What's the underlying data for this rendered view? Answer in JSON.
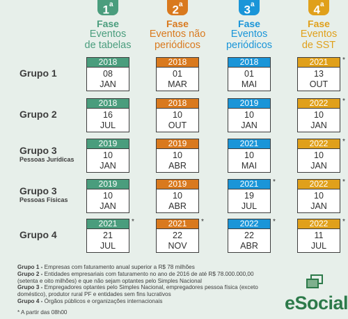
{
  "colors": {
    "phase1": "#4a9d7d",
    "phase2": "#d9791e",
    "phase3": "#1a95d8",
    "phase4": "#e0a01b"
  },
  "phases": [
    {
      "number": "1",
      "suffix": "a",
      "name": "Fase",
      "desc1": "Eventos",
      "desc2": "de tabelas"
    },
    {
      "number": "2",
      "suffix": "a",
      "name": "Fase",
      "desc1": "Eventos não",
      "desc2": "periódicos"
    },
    {
      "number": "3",
      "suffix": "a",
      "name": "Fase",
      "desc1": "Eventos",
      "desc2": "periódicos"
    },
    {
      "number": "4",
      "suffix": "a",
      "name": "Fase",
      "desc1": "Eventos",
      "desc2": "de SST"
    }
  ],
  "groups": [
    {
      "label": "Grupo 1",
      "sub": "",
      "dates": [
        {
          "year": "2018",
          "day": "08",
          "month": "JAN",
          "star": ""
        },
        {
          "year": "2018",
          "day": "01",
          "month": "MAR",
          "star": ""
        },
        {
          "year": "2018",
          "day": "01",
          "month": "MAI",
          "star": ""
        },
        {
          "year": "2021",
          "day": "13",
          "month": "OUT",
          "star": "*"
        }
      ]
    },
    {
      "label": "Grupo 2",
      "sub": "",
      "dates": [
        {
          "year": "2018",
          "day": "16",
          "month": "JUL",
          "star": ""
        },
        {
          "year": "2018",
          "day": "10",
          "month": "OUT",
          "star": ""
        },
        {
          "year": "2019",
          "day": "10",
          "month": "JAN",
          "star": ""
        },
        {
          "year": "2022",
          "day": "10",
          "month": "JAN",
          "star": "*"
        }
      ]
    },
    {
      "label": "Grupo 3",
      "sub": "Pessoas Jurídicas",
      "dates": [
        {
          "year": "2019",
          "day": "10",
          "month": "JAN",
          "star": ""
        },
        {
          "year": "2019",
          "day": "10",
          "month": "ABR",
          "star": ""
        },
        {
          "year": "2021",
          "day": "10",
          "month": "MAI",
          "star": ""
        },
        {
          "year": "2022",
          "day": "10",
          "month": "JAN",
          "star": "*"
        }
      ]
    },
    {
      "label": "Grupo 3",
      "sub": "Pessoas Físicas",
      "dates": [
        {
          "year": "2019",
          "day": "10",
          "month": "JAN",
          "star": ""
        },
        {
          "year": "2019",
          "day": "10",
          "month": "ABR",
          "star": ""
        },
        {
          "year": "2021",
          "day": "19",
          "month": "JUL",
          "star": "*"
        },
        {
          "year": "2022",
          "day": "10",
          "month": "JAN",
          "star": "*"
        }
      ]
    },
    {
      "label": "Grupo 4",
      "sub": "",
      "dates": [
        {
          "year": "2021",
          "day": "21",
          "month": "JUL",
          "star": "*"
        },
        {
          "year": "2021",
          "day": "22",
          "month": "NOV",
          "star": "*"
        },
        {
          "year": "2022",
          "day": "22",
          "month": "ABR",
          "star": "*"
        },
        {
          "year": "2022",
          "day": "11",
          "month": "JUL",
          "star": "*"
        }
      ]
    }
  ],
  "legend": [
    {
      "key": "Grupo 1 -",
      "text": " Empresas com faturamento anual superior a R$ 78 milhões"
    },
    {
      "key": "Grupo 2 -",
      "text": " Entidades empresariais com faturamento no ano de 2016 de até R$ 78.000.000,00 (setenta e oito milhões) e que não sejam optantes pelo Simples Nacional"
    },
    {
      "key": "Grupo 3 -",
      "text": " Empregadores optantes pelo Simples Nacional, empregadores pessoa física (exceto doméstico), produtor rural PF e entidades sem fins lucrativos"
    },
    {
      "key": "Grupo 4 -",
      "text": " Órgãos públicos e organizações internacionais"
    }
  ],
  "footnote": "* A partir das 08h00",
  "logo": "eSocial"
}
